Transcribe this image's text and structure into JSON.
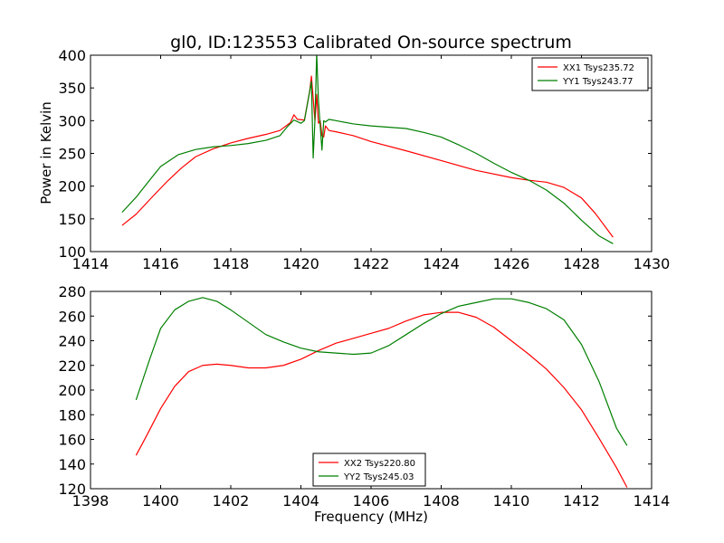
{
  "chart_data": [
    {
      "type": "line",
      "title": "gl0, ID:123553 Calibrated On-source spectrum",
      "xlabel": "",
      "ylabel": "Power in Kelvin",
      "xlim": [
        1414,
        1430
      ],
      "ylim": [
        100,
        400
      ],
      "xticks": [
        1414,
        1416,
        1418,
        1420,
        1422,
        1424,
        1426,
        1428,
        1430
      ],
      "yticks": [
        100,
        150,
        200,
        250,
        300,
        350,
        400
      ],
      "legend_position": "top-right",
      "series": [
        {
          "name": "XX1 Tsys235.72",
          "color": "#ff0000",
          "points": [
            [
              1414.9,
              140
            ],
            [
              1415.3,
              157
            ],
            [
              1415.7,
              180
            ],
            [
              1416.2,
              208
            ],
            [
              1416.6,
              228
            ],
            [
              1417.0,
              245
            ],
            [
              1417.5,
              257
            ],
            [
              1418.0,
              266
            ],
            [
              1418.5,
              273
            ],
            [
              1419.0,
              279
            ],
            [
              1419.4,
              285
            ],
            [
              1419.7,
              297
            ],
            [
              1419.8,
              309
            ],
            [
              1419.9,
              302
            ],
            [
              1420.1,
              301
            ],
            [
              1420.25,
              345
            ],
            [
              1420.3,
              368
            ],
            [
              1420.4,
              300
            ],
            [
              1420.45,
              340
            ],
            [
              1420.5,
              296
            ],
            [
              1420.55,
              300
            ],
            [
              1420.6,
              277
            ],
            [
              1420.65,
              275
            ],
            [
              1420.7,
              292
            ],
            [
              1420.8,
              285
            ],
            [
              1421.0,
              283
            ],
            [
              1421.5,
              277
            ],
            [
              1422.0,
              268
            ],
            [
              1423.0,
              254
            ],
            [
              1424.0,
              239
            ],
            [
              1425.0,
              224
            ],
            [
              1426.0,
              213
            ],
            [
              1426.5,
              209
            ],
            [
              1427.0,
              206
            ],
            [
              1427.5,
              198
            ],
            [
              1428.0,
              182
            ],
            [
              1428.4,
              158
            ],
            [
              1428.9,
              122
            ]
          ]
        },
        {
          "name": "YY1 Tsys243.77",
          "color": "#007f00",
          "points": [
            [
              1414.9,
              160
            ],
            [
              1415.3,
              183
            ],
            [
              1415.7,
              210
            ],
            [
              1416.0,
              230
            ],
            [
              1416.5,
              248
            ],
            [
              1417.0,
              256
            ],
            [
              1417.5,
              260
            ],
            [
              1418.0,
              262
            ],
            [
              1418.5,
              265
            ],
            [
              1419.0,
              270
            ],
            [
              1419.4,
              277
            ],
            [
              1419.6,
              290
            ],
            [
              1419.8,
              301
            ],
            [
              1420.0,
              296
            ],
            [
              1420.1,
              300
            ],
            [
              1420.2,
              330
            ],
            [
              1420.3,
              360
            ],
            [
              1420.35,
              243
            ],
            [
              1420.4,
              300
            ],
            [
              1420.45,
              403
            ],
            [
              1420.5,
              330
            ],
            [
              1420.6,
              255
            ],
            [
              1420.65,
              300
            ],
            [
              1420.7,
              298
            ],
            [
              1420.8,
              302
            ],
            [
              1421.0,
              300
            ],
            [
              1421.5,
              295
            ],
            [
              1422.0,
              292
            ],
            [
              1423.0,
              288
            ],
            [
              1423.5,
              282
            ],
            [
              1424.0,
              275
            ],
            [
              1424.5,
              263
            ],
            [
              1425.0,
              250
            ],
            [
              1425.5,
              235
            ],
            [
              1426.0,
              221
            ],
            [
              1426.5,
              209
            ],
            [
              1427.0,
              194
            ],
            [
              1427.5,
              174
            ],
            [
              1428.0,
              148
            ],
            [
              1428.5,
              124
            ],
            [
              1428.9,
              112
            ]
          ]
        }
      ]
    },
    {
      "type": "line",
      "title": "",
      "xlabel": "Frequency (MHz)",
      "ylabel": "",
      "xlim": [
        1398,
        1414
      ],
      "ylim": [
        120,
        280
      ],
      "xticks": [
        1398,
        1400,
        1402,
        1404,
        1406,
        1408,
        1410,
        1412,
        1414
      ],
      "yticks": [
        120,
        140,
        160,
        180,
        200,
        220,
        240,
        260,
        280
      ],
      "legend_position": "bottom-center",
      "series": [
        {
          "name": "XX2 Tsys220.80",
          "color": "#ff0000",
          "points": [
            [
              1399.3,
              147
            ],
            [
              1399.6,
              163
            ],
            [
              1400.0,
              185
            ],
            [
              1400.4,
              203
            ],
            [
              1400.8,
              215
            ],
            [
              1401.2,
              220
            ],
            [
              1401.6,
              221
            ],
            [
              1402.0,
              220
            ],
            [
              1402.5,
              218
            ],
            [
              1403.0,
              218
            ],
            [
              1403.5,
              220
            ],
            [
              1404.0,
              225
            ],
            [
              1404.5,
              232
            ],
            [
              1405.0,
              238
            ],
            [
              1405.5,
              242
            ],
            [
              1406.0,
              246
            ],
            [
              1406.5,
              250
            ],
            [
              1407.0,
              256
            ],
            [
              1407.5,
              261
            ],
            [
              1408.0,
              263
            ],
            [
              1408.5,
              263
            ],
            [
              1409.0,
              259
            ],
            [
              1409.5,
              251
            ],
            [
              1410.0,
              240
            ],
            [
              1410.5,
              229
            ],
            [
              1411.0,
              217
            ],
            [
              1411.5,
              202
            ],
            [
              1412.0,
              184
            ],
            [
              1412.5,
              161
            ],
            [
              1413.0,
              137
            ],
            [
              1413.3,
              121
            ]
          ]
        },
        {
          "name": "YY2 Tsys245.03",
          "color": "#007f00",
          "points": [
            [
              1399.3,
              192
            ],
            [
              1399.7,
              226
            ],
            [
              1400.0,
              250
            ],
            [
              1400.4,
              265
            ],
            [
              1400.8,
              272
            ],
            [
              1401.2,
              275
            ],
            [
              1401.6,
              272
            ],
            [
              1402.0,
              265
            ],
            [
              1402.5,
              255
            ],
            [
              1403.0,
              245
            ],
            [
              1403.5,
              239
            ],
            [
              1404.0,
              234
            ],
            [
              1404.5,
              231
            ],
            [
              1405.0,
              230
            ],
            [
              1405.5,
              229
            ],
            [
              1406.0,
              230
            ],
            [
              1406.5,
              236
            ],
            [
              1407.0,
              245
            ],
            [
              1407.5,
              254
            ],
            [
              1408.0,
              262
            ],
            [
              1408.5,
              268
            ],
            [
              1409.0,
              271
            ],
            [
              1409.5,
              274
            ],
            [
              1410.0,
              274
            ],
            [
              1410.5,
              271
            ],
            [
              1411.0,
              266
            ],
            [
              1411.5,
              257
            ],
            [
              1412.0,
              237
            ],
            [
              1412.5,
              207
            ],
            [
              1413.0,
              169
            ],
            [
              1413.3,
              155
            ]
          ]
        }
      ]
    }
  ]
}
